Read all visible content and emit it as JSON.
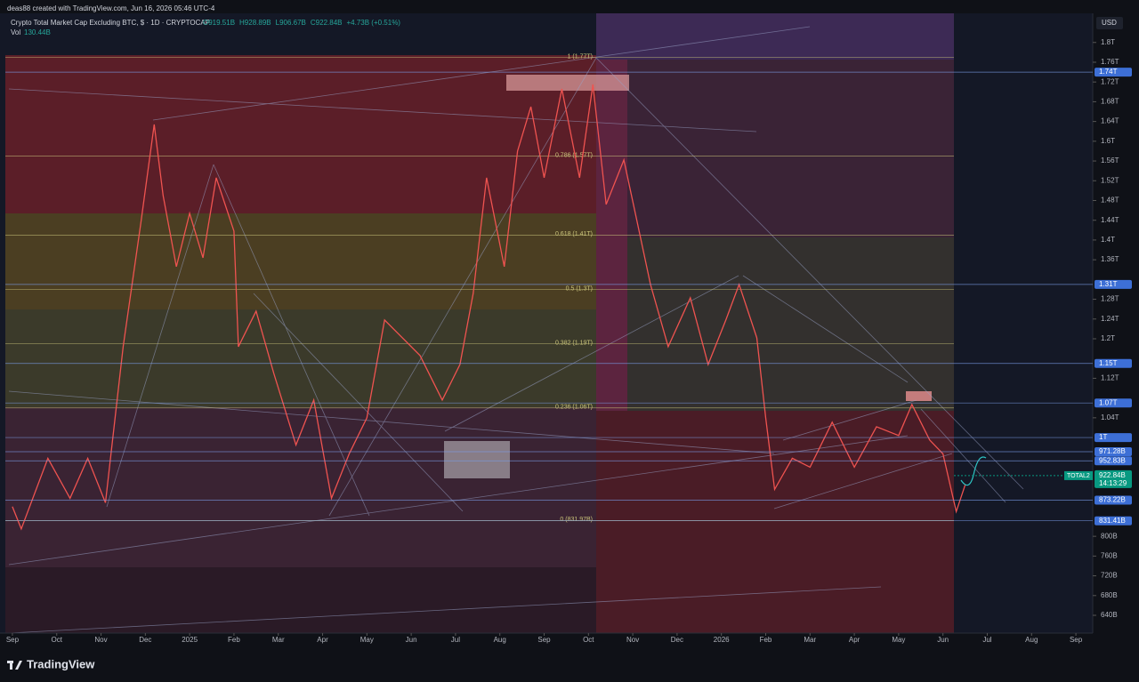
{
  "credit": "deas88 created with TradingView.com, Jun 16, 2026 05:46 UTC-4",
  "brand": "TradingView",
  "chart_data": {
    "type": "line",
    "title": "Crypto Total Market Cap Excluding BTC, $ · 1D · CRYPTOCAP",
    "ohlc": [
      "O919.51B",
      "H928.89B",
      "L906.67B",
      "C922.84B",
      "+4.73B (+0.51%)"
    ],
    "volume_name": "Vol",
    "volume_value": "130.44B",
    "currency": "USD",
    "series": [
      {
        "name": "TOTAL2",
        "color": "#ef5350",
        "x": [
          0,
          0.2,
          0.8,
          1.3,
          1.7,
          2.1,
          2.5,
          2.9,
          3.2,
          3.4,
          3.7,
          4.0,
          4.3,
          4.6,
          5.0,
          5.1,
          5.5,
          5.9,
          6.4,
          6.8,
          7.2,
          7.6,
          8.0,
          8.4,
          8.8,
          9.2,
          9.7,
          10.1,
          10.4,
          10.7,
          11.1,
          11.4,
          11.7,
          12.0,
          12.4,
          12.8,
          13.1,
          13.4,
          13.8,
          14.1,
          14.4,
          14.8,
          15.3,
          15.7,
          16.1,
          16.4,
          16.8,
          17.0,
          17.2,
          17.6,
          18.0,
          18.5,
          19.0,
          19.5,
          20.0,
          20.3,
          20.7,
          21.0,
          21.3,
          21.5
        ],
        "values": [
          860,
          815,
          958,
          877,
          958,
          868,
          1184,
          1436,
          1634,
          1490,
          1346,
          1454,
          1364,
          1526,
          1418,
          1184,
          1256,
          1130,
          985,
          1076,
          877,
          967,
          1040,
          1238,
          1202,
          1166,
          1076,
          1148,
          1292,
          1526,
          1346,
          1580,
          1670,
          1526,
          1706,
          1526,
          1715,
          1472,
          1562,
          1436,
          1310,
          1184,
          1283,
          1148,
          1238,
          1310,
          1202,
          1040,
          895,
          958,
          940,
          1031,
          940,
          1022,
          1004,
          1067,
          995,
          967,
          850,
          904
        ]
      }
    ],
    "xlim": [
      -0.28,
      24.38
    ],
    "xticks": [
      {
        "value": 0,
        "label": "Sep"
      },
      {
        "value": 1,
        "label": "Oct"
      },
      {
        "value": 2,
        "label": "Nov"
      },
      {
        "value": 3,
        "label": "Dec"
      },
      {
        "value": 4,
        "label": "2025"
      },
      {
        "value": 5,
        "label": "Feb"
      },
      {
        "value": 6,
        "label": "Mar"
      },
      {
        "value": 7,
        "label": "Apr"
      },
      {
        "value": 8,
        "label": "May"
      },
      {
        "value": 9,
        "label": "Jun"
      },
      {
        "value": 10,
        "label": "Jul"
      },
      {
        "value": 11,
        "label": "Aug"
      },
      {
        "value": 12,
        "label": "Sep"
      },
      {
        "value": 13,
        "label": "Oct"
      },
      {
        "value": 14,
        "label": "Nov"
      },
      {
        "value": 15,
        "label": "Dec"
      },
      {
        "value": 16,
        "label": "2026"
      },
      {
        "value": 17,
        "label": "Feb"
      },
      {
        "value": 18,
        "label": "Mar"
      },
      {
        "value": 19,
        "label": "Apr"
      },
      {
        "value": 20,
        "label": "May"
      },
      {
        "value": 21,
        "label": "Jun"
      },
      {
        "value": 22,
        "label": "Jul"
      },
      {
        "value": 23,
        "label": "Aug"
      },
      {
        "value": 24,
        "label": "Sep"
      }
    ],
    "ylim": [
      604,
      1859
    ],
    "yticks": [
      {
        "value": 1800,
        "label": "1.8T"
      },
      {
        "value": 1760,
        "label": "1.76T"
      },
      {
        "value": 1720,
        "label": "1.72T"
      },
      {
        "value": 1680,
        "label": "1.68T"
      },
      {
        "value": 1640,
        "label": "1.64T"
      },
      {
        "value": 1600,
        "label": "1.6T"
      },
      {
        "value": 1560,
        "label": "1.56T"
      },
      {
        "value": 1520,
        "label": "1.52T"
      },
      {
        "value": 1480,
        "label": "1.48T"
      },
      {
        "value": 1440,
        "label": "1.44T"
      },
      {
        "value": 1400,
        "label": "1.4T"
      },
      {
        "value": 1360,
        "label": "1.36T"
      },
      {
        "value": 1280,
        "label": "1.28T"
      },
      {
        "value": 1240,
        "label": "1.24T"
      },
      {
        "value": 1200,
        "label": "1.2T"
      },
      {
        "value": 1120,
        "label": "1.12T"
      },
      {
        "value": 1040,
        "label": "1.04T"
      },
      {
        "value": 800,
        "label": "800B"
      },
      {
        "value": 760,
        "label": "760B"
      },
      {
        "value": 720,
        "label": "720B"
      },
      {
        "value": 680,
        "label": "680B"
      },
      {
        "value": 640,
        "label": "640B"
      }
    ],
    "grid": false,
    "levels": [
      {
        "value": 1740,
        "label": "1.74T"
      },
      {
        "value": 1310,
        "label": "1.31T"
      },
      {
        "value": 1150,
        "label": "1.15T"
      },
      {
        "value": 1070,
        "label": "1.07T"
      },
      {
        "value": 1000,
        "label": "1T"
      },
      {
        "value": 971.28,
        "label": "971.28B"
      },
      {
        "value": 952.83,
        "label": "952.83B"
      },
      {
        "value": 873.22,
        "label": "873.22B"
      },
      {
        "value": 831.41,
        "label": "831.41B"
      }
    ],
    "level_color": "#3d6fd6",
    "last_price": {
      "name": "TOTAL2",
      "value": 922.84,
      "label": "922.84B",
      "countdown": "14:13:29",
      "color": "#089981"
    },
    "fib": [
      {
        "value": 1770,
        "label": "1 (1.77T)"
      },
      {
        "value": 1570,
        "label": "0.786 (1.57T)"
      },
      {
        "value": 1410,
        "label": "0.618 (1.41T)"
      },
      {
        "value": 1300,
        "label": "0.5 (1.3T)"
      },
      {
        "value": 1190,
        "label": "0.382 (1.19T)"
      },
      {
        "value": 1060,
        "label": "0.236 (1.06T)"
      },
      {
        "value": 831.97,
        "label": "0 (831.97B)"
      }
    ]
  }
}
